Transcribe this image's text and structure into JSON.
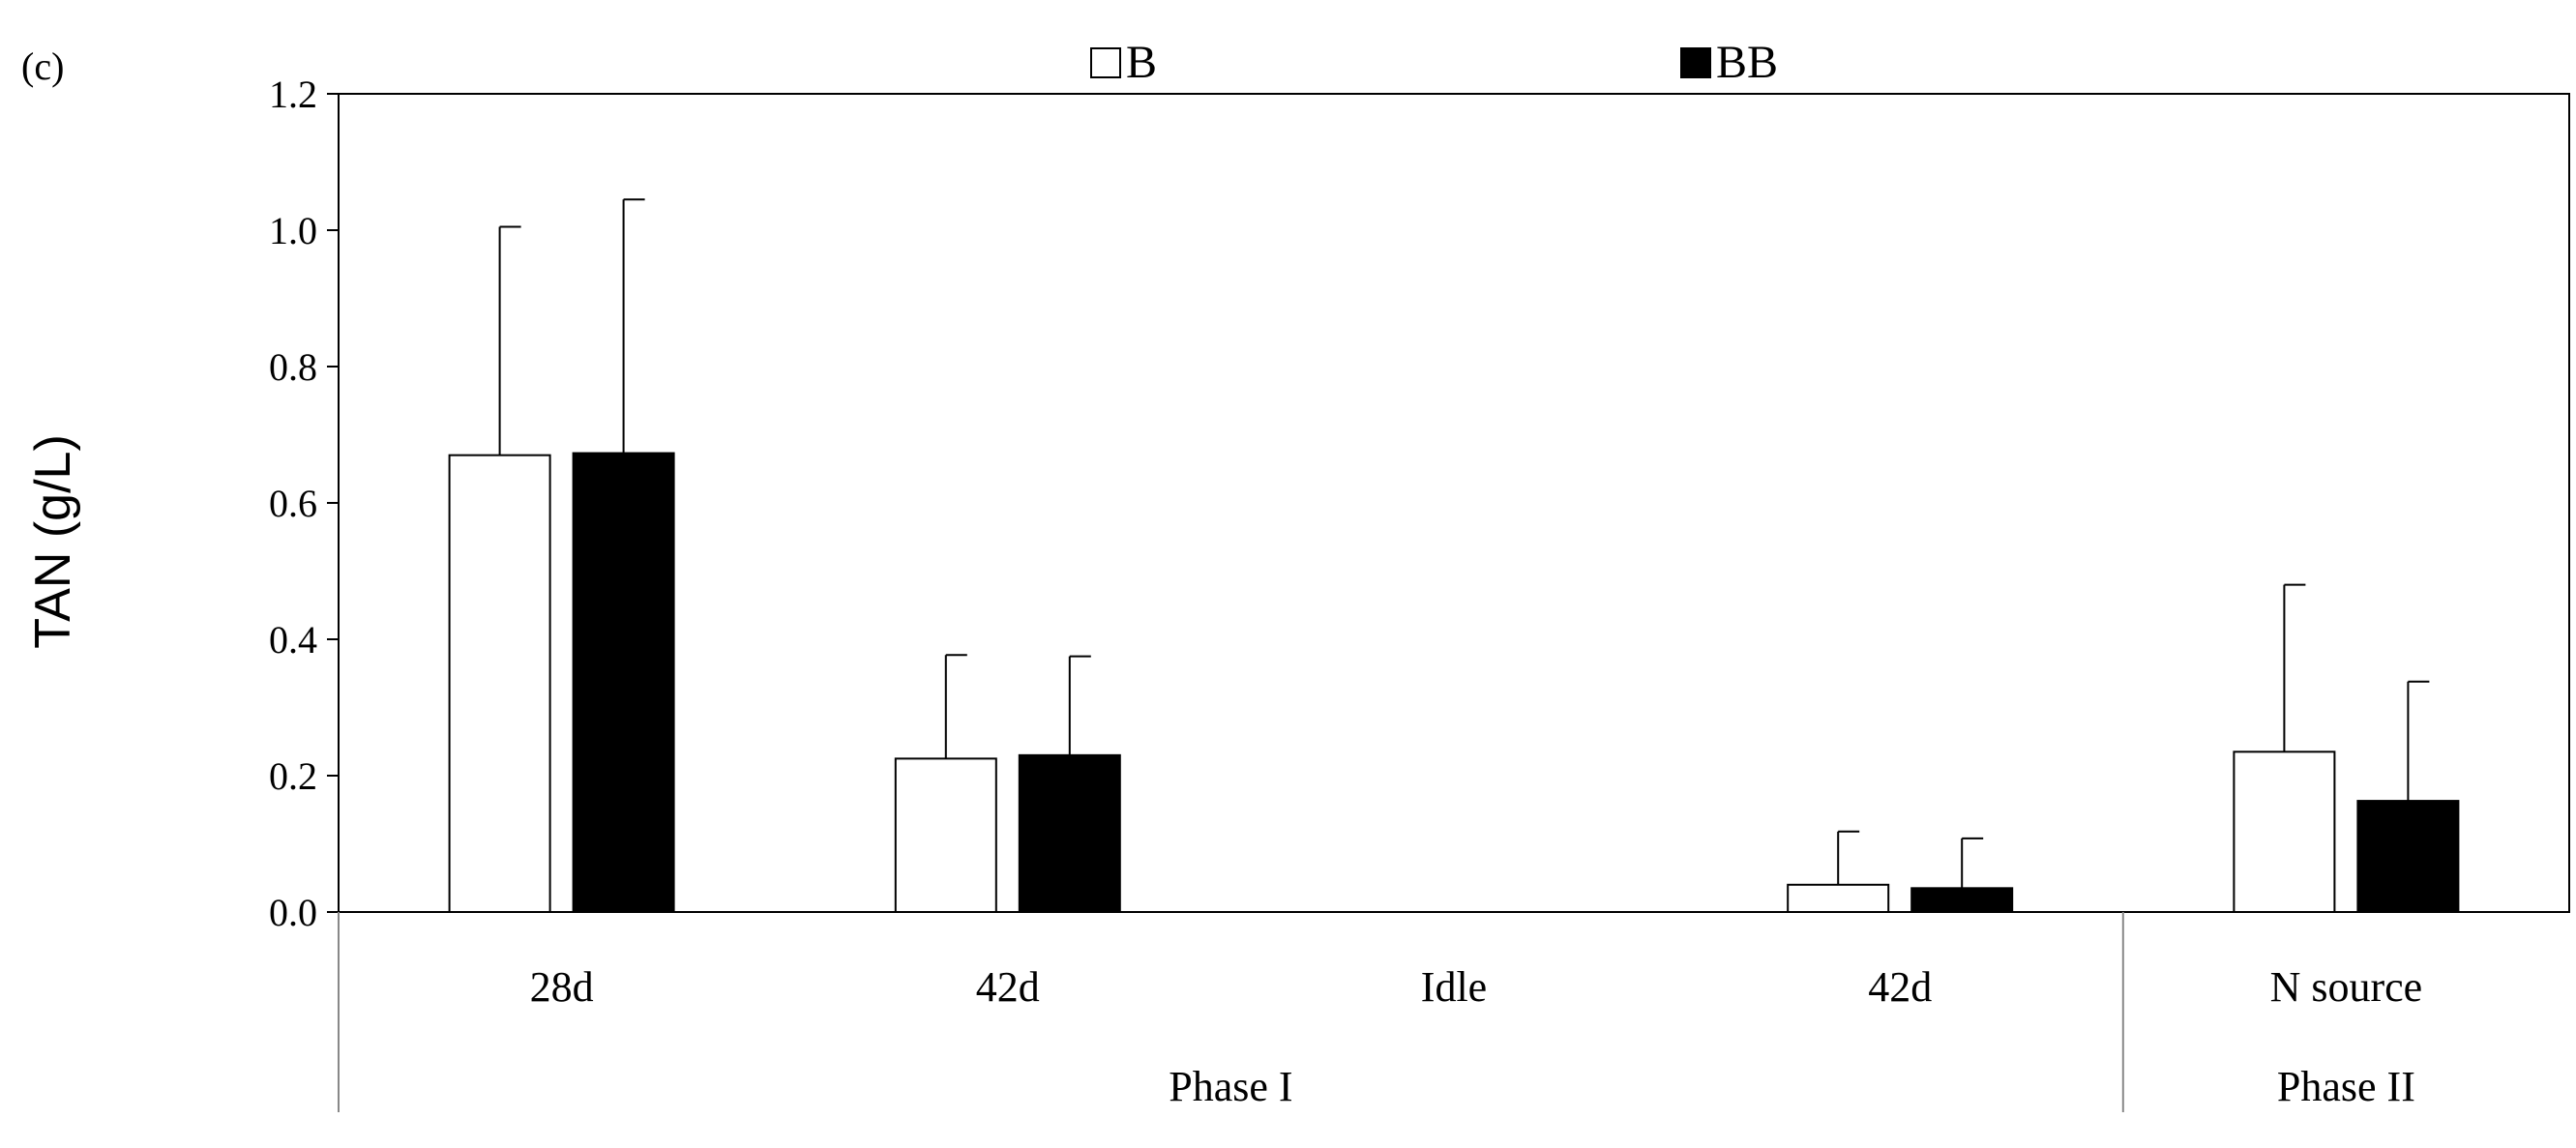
{
  "chart_data": {
    "type": "bar",
    "panel_label": "(c)",
    "ylabel": "TAN (g/L)",
    "ylim": [
      0,
      1.2
    ],
    "yticks": [
      "0.0",
      "0.2",
      "0.4",
      "0.6",
      "0.8",
      "1.0",
      "1.2"
    ],
    "ytick_values": [
      0,
      0.2,
      0.4,
      0.6,
      0.8,
      1.0,
      1.2
    ],
    "categories": [
      "28d",
      "42d",
      "Idle",
      "42d",
      "N source"
    ],
    "groups": [
      {
        "label": "Phase I",
        "categories": [
          0,
          1,
          2,
          3
        ]
      },
      {
        "label": "Phase II",
        "categories": [
          4
        ]
      }
    ],
    "legend_position": "top-center",
    "series": [
      {
        "name": "B",
        "color": "#ffffff",
        "values": [
          0.67,
          0.225,
          null,
          0.04,
          0.235
        ],
        "errors": [
          0.335,
          0.152,
          null,
          0.078,
          0.245
        ]
      },
      {
        "name": "BB",
        "color": "#000000",
        "values": [
          0.673,
          0.23,
          null,
          0.035,
          0.163
        ],
        "errors": [
          0.372,
          0.145,
          null,
          0.073,
          0.175
        ]
      }
    ]
  }
}
